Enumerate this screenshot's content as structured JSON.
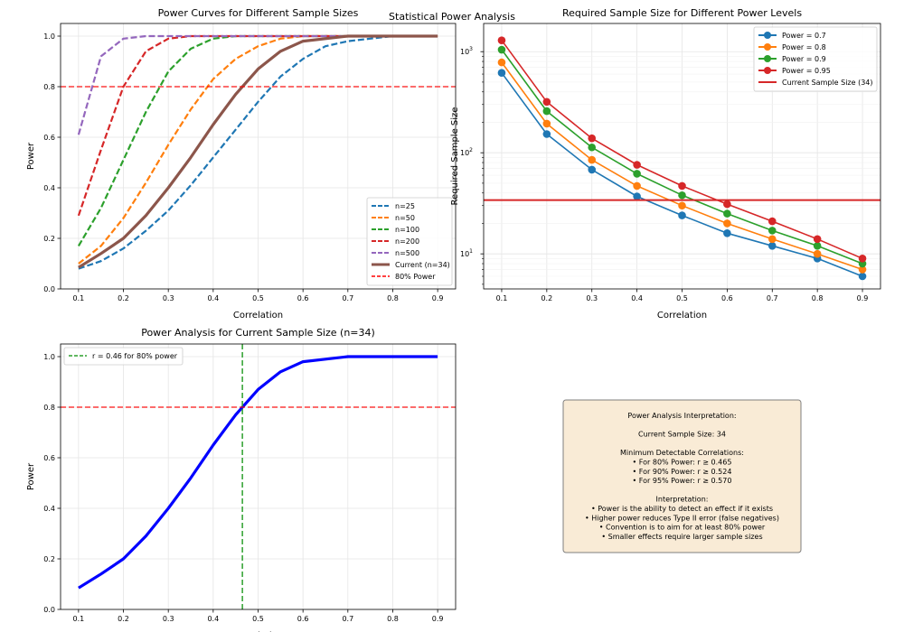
{
  "suptitle": "Statistical Power Analysis",
  "colors": {
    "blue": "#1f77b4",
    "orange": "#ff7f0e",
    "green": "#2ca02c",
    "red": "#d62728",
    "purple": "#9467bd",
    "brown": "#8c564b",
    "target": "#ff0000",
    "current": "#0000ff",
    "box_fill": "#f9ebd6",
    "box_edge": "#7f7f7f",
    "grid": "#e5e5e5"
  },
  "chart_data": [
    {
      "type": "line",
      "title": "Power Curves for Different Sample Sizes",
      "xlabel": "Correlation",
      "ylabel": "Power",
      "xlim": [
        0.06,
        0.94
      ],
      "ylim": [
        0,
        1.05
      ],
      "xticks": [
        0.1,
        0.2,
        0.3,
        0.4,
        0.5,
        0.6,
        0.7,
        0.8,
        0.9
      ],
      "xtick_labels": [
        "0.1",
        "0.2",
        "0.3",
        "0.4",
        "0.5",
        "0.6",
        "0.7",
        "0.8",
        "0.9"
      ],
      "yticks": [
        0,
        0.2,
        0.4,
        0.6,
        0.8,
        1.0
      ],
      "ytick_labels": [
        "0.0",
        "0.2",
        "0.4",
        "0.6",
        "0.8",
        "1.0"
      ],
      "grid": true,
      "legend_position": "lower-right",
      "x": [
        0.1,
        0.15,
        0.2,
        0.25,
        0.3,
        0.35,
        0.4,
        0.45,
        0.5,
        0.55,
        0.6,
        0.65,
        0.7,
        0.75,
        0.8,
        0.85,
        0.9
      ],
      "series": [
        {
          "name": "n=25",
          "color": "blue",
          "style": "dashed",
          "values": [
            0.08,
            0.11,
            0.16,
            0.23,
            0.31,
            0.41,
            0.52,
            0.63,
            0.74,
            0.84,
            0.91,
            0.96,
            0.98,
            0.99,
            1.0,
            1.0,
            1.0
          ]
        },
        {
          "name": "n=50",
          "color": "orange",
          "style": "dashed",
          "values": [
            0.1,
            0.17,
            0.28,
            0.42,
            0.57,
            0.71,
            0.83,
            0.91,
            0.96,
            0.99,
            1.0,
            1.0,
            1.0,
            1.0,
            1.0,
            1.0,
            1.0
          ]
        },
        {
          "name": "n=100",
          "color": "green",
          "style": "dashed",
          "values": [
            0.17,
            0.32,
            0.51,
            0.7,
            0.86,
            0.95,
            0.99,
            1.0,
            1.0,
            1.0,
            1.0,
            1.0,
            1.0,
            1.0,
            1.0,
            1.0,
            1.0
          ]
        },
        {
          "name": "n=200",
          "color": "red",
          "style": "dashed",
          "values": [
            0.29,
            0.55,
            0.8,
            0.94,
            0.99,
            1.0,
            1.0,
            1.0,
            1.0,
            1.0,
            1.0,
            1.0,
            1.0,
            1.0,
            1.0,
            1.0,
            1.0
          ]
        },
        {
          "name": "n=500",
          "color": "purple",
          "style": "dashed",
          "values": [
            0.61,
            0.92,
            0.99,
            1.0,
            1.0,
            1.0,
            1.0,
            1.0,
            1.0,
            1.0,
            1.0,
            1.0,
            1.0,
            1.0,
            1.0,
            1.0,
            1.0
          ]
        },
        {
          "name": "Current (n=34)",
          "color": "brown",
          "style": "solid-thick",
          "values": [
            0.085,
            0.14,
            0.2,
            0.29,
            0.4,
            0.52,
            0.65,
            0.77,
            0.87,
            0.94,
            0.98,
            0.99,
            1.0,
            1.0,
            1.0,
            1.0,
            1.0
          ]
        },
        {
          "name": "80% Power",
          "color": "target",
          "style": "hline-dashed",
          "y": 0.8
        }
      ]
    },
    {
      "type": "line",
      "title": "Required Sample Size for Different Power Levels",
      "xlabel": "Correlation",
      "ylabel": "Required Sample Size",
      "yscale": "log",
      "xlim": [
        0.06,
        0.94
      ],
      "ylim": [
        4.5,
        1900
      ],
      "xticks": [
        0.1,
        0.2,
        0.3,
        0.4,
        0.5,
        0.6,
        0.7,
        0.8,
        0.9
      ],
      "xtick_labels": [
        "0.1",
        "0.2",
        "0.3",
        "0.4",
        "0.5",
        "0.6",
        "0.7",
        "0.8",
        "0.9"
      ],
      "yticks": [
        10,
        100,
        1000
      ],
      "ytick_base": "10",
      "ytick_exps": [
        "1",
        "2",
        "3"
      ],
      "grid": true,
      "legend_position": "upper-right",
      "x": [
        0.1,
        0.2,
        0.3,
        0.4,
        0.5,
        0.6,
        0.7,
        0.8,
        0.9
      ],
      "series": [
        {
          "name": "Power = 0.7",
          "color": "blue",
          "values": [
            617,
            153,
            68,
            37,
            24,
            16,
            12,
            9,
            6
          ]
        },
        {
          "name": "Power = 0.8",
          "color": "orange",
          "values": [
            783,
            194,
            85,
            47,
            30,
            20,
            14,
            10,
            7
          ]
        },
        {
          "name": "Power = 0.9",
          "color": "green",
          "values": [
            1046,
            258,
            113,
            62,
            38,
            25,
            17,
            12,
            8
          ]
        },
        {
          "name": "Power = 0.95",
          "color": "red",
          "values": [
            1294,
            319,
            139,
            76,
            47,
            31,
            21,
            14,
            9
          ]
        },
        {
          "name": "Current Sample Size (34)",
          "color": "red",
          "style": "hline",
          "y": 34
        }
      ]
    },
    {
      "type": "line",
      "title": "Power Analysis for Current Sample Size (n=34)",
      "xlabel": "Correlation",
      "ylabel": "Power",
      "xlim": [
        0.06,
        0.94
      ],
      "ylim": [
        0,
        1.05
      ],
      "xticks": [
        0.1,
        0.2,
        0.3,
        0.4,
        0.5,
        0.6,
        0.7,
        0.8,
        0.9
      ],
      "xtick_labels": [
        "0.1",
        "0.2",
        "0.3",
        "0.4",
        "0.5",
        "0.6",
        "0.7",
        "0.8",
        "0.9"
      ],
      "yticks": [
        0,
        0.2,
        0.4,
        0.6,
        0.8,
        1.0
      ],
      "ytick_labels": [
        "0.0",
        "0.2",
        "0.4",
        "0.6",
        "0.8",
        "1.0"
      ],
      "grid": true,
      "legend_position": "upper-left",
      "x": [
        0.1,
        0.15,
        0.2,
        0.25,
        0.3,
        0.35,
        0.4,
        0.45,
        0.5,
        0.55,
        0.6,
        0.65,
        0.7,
        0.75,
        0.8,
        0.85,
        0.9
      ],
      "series": [
        {
          "color": "current",
          "style": "solid-thick",
          "values": [
            0.085,
            0.14,
            0.2,
            0.29,
            0.4,
            0.52,
            0.65,
            0.77,
            0.87,
            0.94,
            0.98,
            0.99,
            1.0,
            1.0,
            1.0,
            1.0,
            1.0
          ]
        },
        {
          "color": "target",
          "style": "hline-dashed",
          "y": 0.8
        },
        {
          "name": "r = 0.46 for 80% power",
          "color": "green",
          "style": "vline-dashed",
          "x": 0.465
        }
      ]
    }
  ],
  "info_box": {
    "lines": [
      "Power Analysis Interpretation:",
      "",
      "Current Sample Size: 34",
      "",
      "Minimum Detectable Correlations:",
      "• For 80% Power: r ≥ 0.465",
      "• For 90% Power: r ≥ 0.524",
      "• For 95% Power: r ≥ 0.570",
      "",
      "Interpretation:",
      "• Power is the ability to detect an effect if it exists",
      "• Higher power reduces Type II error (false negatives)",
      "• Convention is to aim for at least 80% power",
      "• Smaller effects require larger sample sizes"
    ]
  }
}
